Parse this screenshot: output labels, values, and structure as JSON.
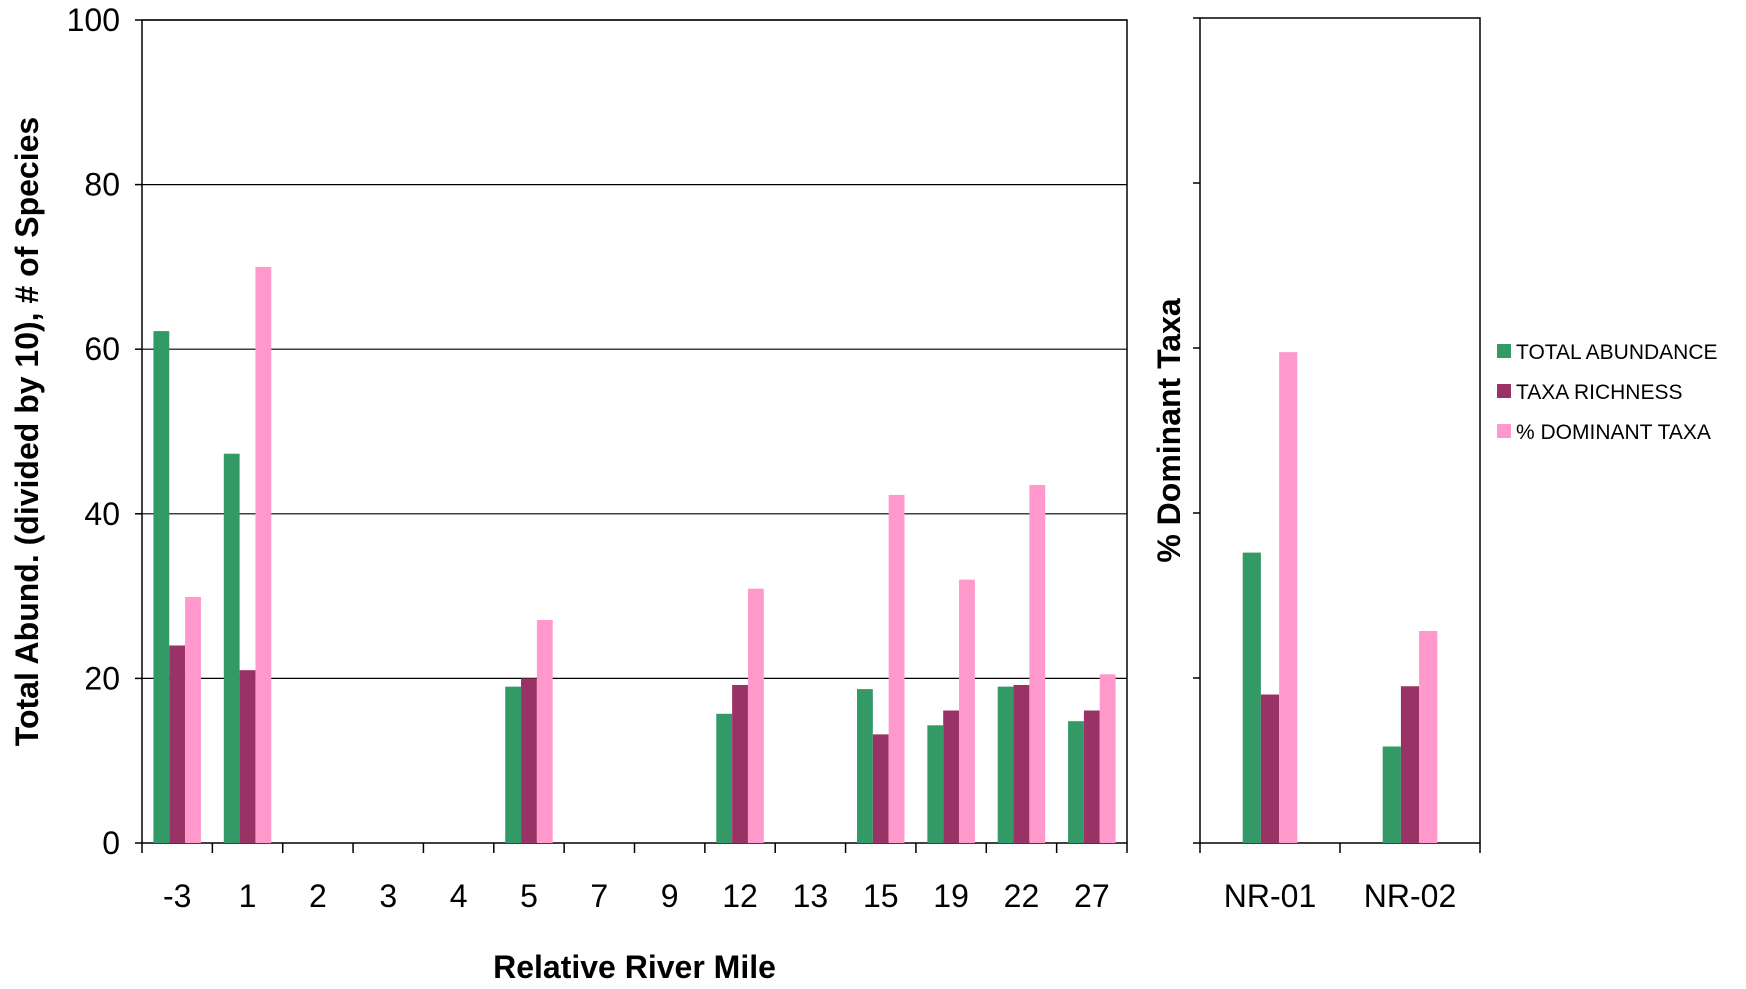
{
  "chart_data": [
    {
      "type": "bar",
      "xlabel": "Relative River Mile",
      "ylabel": "Total Abund. (divided by 10), # of Species",
      "ylim": [
        0,
        100
      ],
      "yticks": [
        0,
        20,
        40,
        60,
        80,
        100
      ],
      "grid": true,
      "categories": [
        "-3",
        "1",
        "2",
        "3",
        "4",
        "5",
        "7",
        "9",
        "12",
        "13",
        "15",
        "19",
        "22",
        "27"
      ],
      "series": [
        {
          "name": "TOTAL ABUNDANCE",
          "values": [
            62.2,
            47.3,
            0,
            0,
            0,
            19,
            0,
            0,
            15.7,
            0,
            18.7,
            14.3,
            19,
            14.8
          ]
        },
        {
          "name": "TAXA RICHNESS",
          "values": [
            24,
            21,
            0,
            0,
            0,
            20,
            0,
            0,
            19.2,
            0,
            13.2,
            16.1,
            19.2,
            16.1
          ]
        },
        {
          "name": "% DOMINANT TAXA",
          "values": [
            29.9,
            70,
            0,
            0,
            0,
            27.1,
            0,
            0,
            30.9,
            0,
            42.3,
            32,
            43.5,
            20.5
          ]
        }
      ]
    },
    {
      "type": "bar",
      "xlabel": "",
      "ylabel": "% Dominant Taxa",
      "ylim": [
        0,
        100
      ],
      "grid": false,
      "categories": [
        "NR-01",
        "NR-02"
      ],
      "series": [
        {
          "name": "TOTAL ABUNDANCE",
          "values": [
            35.2,
            11.7
          ]
        },
        {
          "name": "TAXA RICHNESS",
          "values": [
            18,
            19
          ]
        },
        {
          "name": "% DOMINANT TAXA",
          "values": [
            59.5,
            25.7
          ]
        }
      ]
    }
  ],
  "legend": {
    "placement": "right",
    "items": [
      "TOTAL ABUNDANCE",
      "TAXA RICHNESS",
      "% DOMINANT TAXA"
    ]
  },
  "colors": {
    "series": [
      "#339966",
      "#993366",
      "#ff99cc"
    ],
    "axis": "#000000",
    "grid": "#000000",
    "background": "#ffffff"
  }
}
